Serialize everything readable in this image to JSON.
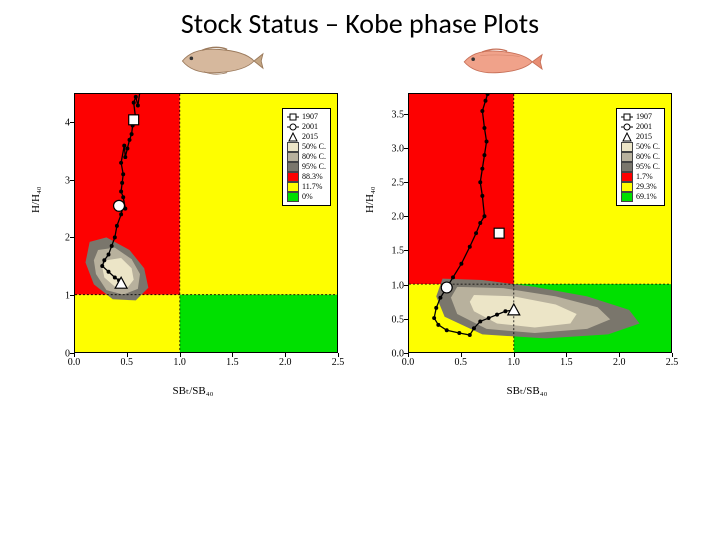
{
  "title": "Stock Status – Kobe phase Plots",
  "colors": {
    "red": "#fd0101",
    "yellow": "#fefe00",
    "green": "#00e000",
    "ci95": "#7a766c",
    "ci80": "#b8b19d",
    "ci50": "#ece5c7",
    "line": "#000000"
  },
  "xlim": [
    0,
    2.5
  ],
  "xticks": [
    0.0,
    0.5,
    1.0,
    1.5,
    2.0,
    2.5
  ],
  "xlabel": "SBₜ/SB₄₀",
  "ylabel": "H/H₄₀",
  "leftPlot": {
    "ylim": [
      0,
      4.5
    ],
    "yticks": [
      0,
      1,
      2,
      3,
      4
    ],
    "traj": [
      [
        0.62,
        4.55
      ],
      [
        0.6,
        4.3
      ],
      [
        0.58,
        4.45
      ],
      [
        0.56,
        4.35
      ],
      [
        0.58,
        4.05
      ],
      [
        0.55,
        3.95
      ],
      [
        0.54,
        3.8
      ],
      [
        0.52,
        3.7
      ],
      [
        0.5,
        3.55
      ],
      [
        0.48,
        3.4
      ],
      [
        0.47,
        3.6
      ],
      [
        0.44,
        3.3
      ],
      [
        0.46,
        3.1
      ],
      [
        0.45,
        2.95
      ],
      [
        0.44,
        2.8
      ],
      [
        0.46,
        2.7
      ],
      [
        0.48,
        2.5
      ],
      [
        0.46,
        2.55
      ],
      [
        0.44,
        2.4
      ],
      [
        0.4,
        2.2
      ],
      [
        0.38,
        2.0
      ],
      [
        0.35,
        1.85
      ],
      [
        0.32,
        1.7
      ],
      [
        0.28,
        1.6
      ],
      [
        0.26,
        1.5
      ],
      [
        0.32,
        1.4
      ],
      [
        0.38,
        1.3
      ],
      [
        0.42,
        1.25
      ],
      [
        0.44,
        1.2
      ]
    ],
    "marker1907": [
      0.56,
      4.05
    ],
    "marker2001": [
      0.42,
      2.55
    ],
    "marker2015": [
      0.44,
      1.2
    ],
    "contours": {
      "c95": [
        [
          0.14,
          1.92
        ],
        [
          0.3,
          2.0
        ],
        [
          0.52,
          1.78
        ],
        [
          0.66,
          1.46
        ],
        [
          0.7,
          1.12
        ],
        [
          0.58,
          0.9
        ],
        [
          0.36,
          0.92
        ],
        [
          0.18,
          1.18
        ],
        [
          0.1,
          1.56
        ],
        [
          0.14,
          1.92
        ]
      ],
      "c80": [
        [
          0.22,
          1.78
        ],
        [
          0.38,
          1.82
        ],
        [
          0.54,
          1.62
        ],
        [
          0.62,
          1.36
        ],
        [
          0.6,
          1.1
        ],
        [
          0.46,
          1.0
        ],
        [
          0.3,
          1.08
        ],
        [
          0.2,
          1.36
        ],
        [
          0.18,
          1.6
        ],
        [
          0.22,
          1.78
        ]
      ],
      "c50": [
        [
          0.3,
          1.6
        ],
        [
          0.44,
          1.64
        ],
        [
          0.54,
          1.46
        ],
        [
          0.56,
          1.26
        ],
        [
          0.5,
          1.12
        ],
        [
          0.38,
          1.14
        ],
        [
          0.28,
          1.3
        ],
        [
          0.26,
          1.48
        ],
        [
          0.3,
          1.6
        ]
      ]
    },
    "legend": {
      "year1": "1907",
      "year2": "2001",
      "year3": "2015",
      "ci50": "50% C.",
      "ci80": "80% C.",
      "ci95": "95% C.",
      "pRed": "88.3%",
      "pYellow": "11.7%",
      "pGreen": "0%"
    }
  },
  "rightPlot": {
    "ylim": [
      0,
      3.8
    ],
    "yticks": [
      0.0,
      0.5,
      1.0,
      1.5,
      2.0,
      2.5,
      3.0,
      3.5
    ],
    "traj": [
      [
        0.75,
        3.8
      ],
      [
        0.73,
        3.7
      ],
      [
        0.7,
        3.55
      ],
      [
        0.72,
        3.3
      ],
      [
        0.74,
        3.1
      ],
      [
        0.72,
        2.9
      ],
      [
        0.7,
        2.7
      ],
      [
        0.68,
        2.5
      ],
      [
        0.7,
        2.3
      ],
      [
        0.72,
        2.0
      ],
      [
        0.68,
        1.9
      ],
      [
        0.64,
        1.75
      ],
      [
        0.58,
        1.55
      ],
      [
        0.5,
        1.3
      ],
      [
        0.42,
        1.1
      ],
      [
        0.36,
        0.95
      ],
      [
        0.3,
        0.8
      ],
      [
        0.26,
        0.65
      ],
      [
        0.24,
        0.5
      ],
      [
        0.28,
        0.4
      ],
      [
        0.36,
        0.32
      ],
      [
        0.48,
        0.28
      ],
      [
        0.58,
        0.25
      ],
      [
        0.62,
        0.35
      ],
      [
        0.68,
        0.45
      ],
      [
        0.76,
        0.5
      ],
      [
        0.84,
        0.55
      ],
      [
        0.92,
        0.6
      ],
      [
        1.0,
        0.62
      ]
    ],
    "marker1907": [
      0.86,
      1.75
    ],
    "marker2001": [
      0.36,
      0.95
    ],
    "marker2015": [
      1.0,
      0.62
    ],
    "contours": {
      "c95": [
        [
          0.32,
          1.08
        ],
        [
          0.7,
          1.06
        ],
        [
          1.2,
          0.96
        ],
        [
          1.7,
          0.82
        ],
        [
          2.1,
          0.62
        ],
        [
          2.2,
          0.42
        ],
        [
          1.9,
          0.26
        ],
        [
          1.3,
          0.2
        ],
        [
          0.7,
          0.26
        ],
        [
          0.34,
          0.52
        ],
        [
          0.26,
          0.82
        ],
        [
          0.32,
          1.08
        ]
      ],
      "c80": [
        [
          0.46,
          0.96
        ],
        [
          0.9,
          0.94
        ],
        [
          1.4,
          0.82
        ],
        [
          1.8,
          0.66
        ],
        [
          1.92,
          0.48
        ],
        [
          1.7,
          0.34
        ],
        [
          1.2,
          0.28
        ],
        [
          0.74,
          0.34
        ],
        [
          0.46,
          0.56
        ],
        [
          0.4,
          0.8
        ],
        [
          0.46,
          0.96
        ]
      ],
      "c50": [
        [
          0.62,
          0.84
        ],
        [
          1.0,
          0.82
        ],
        [
          1.4,
          0.7
        ],
        [
          1.6,
          0.56
        ],
        [
          1.54,
          0.42
        ],
        [
          1.2,
          0.36
        ],
        [
          0.84,
          0.42
        ],
        [
          0.62,
          0.6
        ],
        [
          0.58,
          0.74
        ],
        [
          0.62,
          0.84
        ]
      ]
    },
    "legend": {
      "year1": "1907",
      "year2": "2001",
      "year3": "2015",
      "ci50": "50% C.",
      "ci80": "80% C.",
      "ci95": "95% C.",
      "pRed": "1.7%",
      "pYellow": "29.3%",
      "pGreen": "69.1%"
    }
  }
}
